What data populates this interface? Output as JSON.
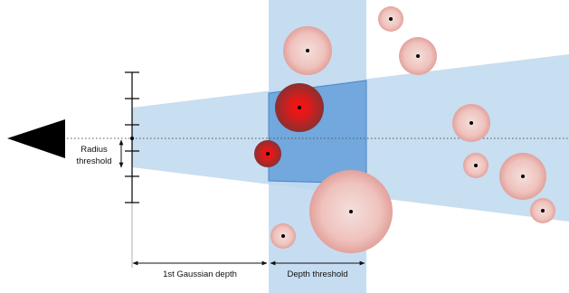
{
  "labels": {
    "radius_threshold_line1": "Radius",
    "radius_threshold_line2": "threshold",
    "first_gaussian_depth": "1st Gaussian depth",
    "depth_threshold": "Depth threshold"
  },
  "colors": {
    "frustum_fill": "#c9dff1",
    "depth_band_fill": "#bcd7ee",
    "selected_region_fill": "#5f9ad8",
    "selected_region_stroke": "#3d7cc4",
    "gaussian_pale_center": "#f3dcd8",
    "gaussian_pale_edge": "#e9aaa5",
    "gaussian_active_center": "#ff1a1a",
    "gaussian_active_edge": "#8e2a2a",
    "camera": "#000000"
  },
  "icons": {
    "camera": "triangle-camera-icon"
  }
}
